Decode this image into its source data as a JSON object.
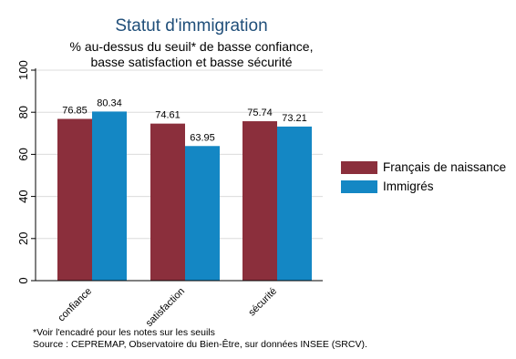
{
  "chart_data": {
    "type": "bar",
    "title": "Statut d'immigration",
    "subtitle_lines": [
      "% au-dessus du seuil* de basse confiance,",
      "basse satisfaction et basse sécurité"
    ],
    "categories": [
      "confiance",
      "satisfaction",
      "sécurité"
    ],
    "series": [
      {
        "name": "Français de naissance",
        "color": "#8b2f3c",
        "values": [
          76.85,
          74.61,
          75.74
        ],
        "labels": [
          "76.85",
          "74.61",
          "75.74"
        ]
      },
      {
        "name": "Immigrés",
        "color": "#1487c4",
        "values": [
          80.34,
          63.95,
          73.21
        ],
        "labels": [
          "80.34",
          "63.95",
          "73.21"
        ]
      }
    ],
    "ylim": [
      0,
      100
    ],
    "yticks": [
      0,
      20,
      40,
      60,
      80,
      100
    ],
    "ytick_labels": [
      "0",
      "20",
      "40",
      "60",
      "80",
      "100"
    ],
    "grid": true,
    "legend_position": "right",
    "xlabel": "",
    "ylabel": ""
  },
  "notes": [
    "*Voir l'encadré pour les notes sur les seuils",
    "Source : CEPREMAP, Observatoire du Bien-Être, sur données INSEE (SRCV)."
  ]
}
